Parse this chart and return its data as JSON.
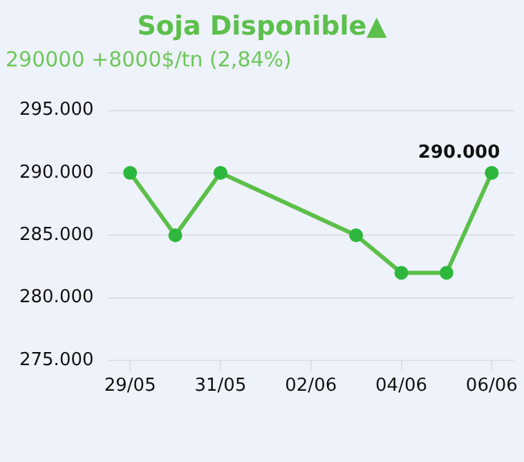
{
  "chart_data": {
    "type": "line",
    "title": "Soja Disponible▲",
    "subtitle": "290000 +8000$/tn (2,84%)",
    "x": [
      "--05-29",
      "--05-30",
      "--05-31",
      "--06-03",
      "--06-04",
      "--06-05",
      "--06-06"
    ],
    "series": [
      {
        "color": "#5cbf4a",
        "values": [
          290000,
          285000,
          290000,
          285000,
          282000,
          282000,
          290000
        ],
        "value_labels": [
          null,
          null,
          null,
          null,
          null,
          null,
          "290.000"
        ]
      }
    ],
    "xlim": [
      "--05-28T12:00",
      "--06-06T12:00"
    ],
    "xticks": [
      {
        "value": "--05-29",
        "label": "29/05"
      },
      {
        "value": "--05-31",
        "label": "31/05"
      },
      {
        "value": "--06-02",
        "label": "02/06"
      },
      {
        "value": "--06-04",
        "label": "04/06"
      },
      {
        "value": "--06-06",
        "label": "06/06"
      }
    ],
    "ylim": [
      275000,
      295000
    ],
    "yticks": [
      {
        "value": 275000,
        "label": "275.000"
      },
      {
        "value": 280000,
        "label": "280.000"
      },
      {
        "value": 285000,
        "label": "285.000"
      },
      {
        "value": 290000,
        "label": "290.000"
      },
      {
        "value": 295000,
        "label": "295.000"
      }
    ],
    "grid": "y",
    "legend": false,
    "marker": "circle",
    "line_style": "solid"
  }
}
